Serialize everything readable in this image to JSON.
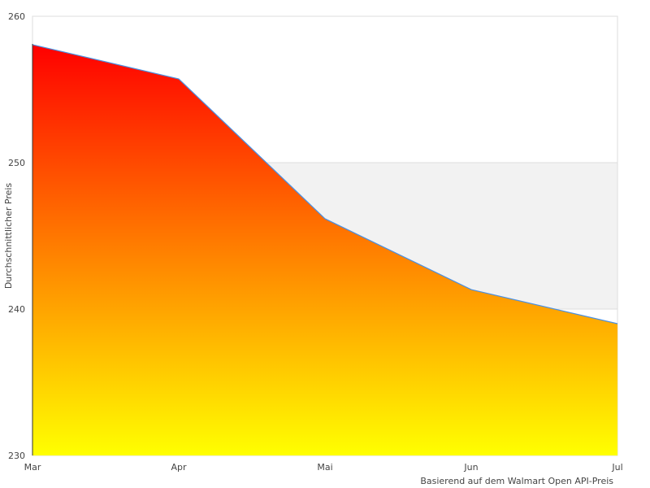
{
  "chart_data": {
    "type": "area",
    "title": "",
    "xlabel": "Basierend auf dem Walmart Open API-Preis",
    "ylabel": "Durchschnittlicher Preis",
    "categories": [
      "Mar",
      "Apr",
      "Mai",
      "Jun",
      "Jul"
    ],
    "series": [
      {
        "name": "Durchschnittlicher Preis",
        "values": [
          258.06,
          255.72,
          246.17,
          241.33,
          239.0
        ]
      }
    ],
    "ylim": [
      230,
      260
    ],
    "yticks": [
      "230",
      "240",
      "250",
      "260"
    ],
    "shaded_band": [
      240,
      250
    ],
    "colors": {
      "gradient_top": "#ff0000",
      "gradient_bottom": "#ffff00",
      "line": "#4a90e2",
      "band": "#f2f2f2",
      "grid": "#dddddd"
    }
  }
}
